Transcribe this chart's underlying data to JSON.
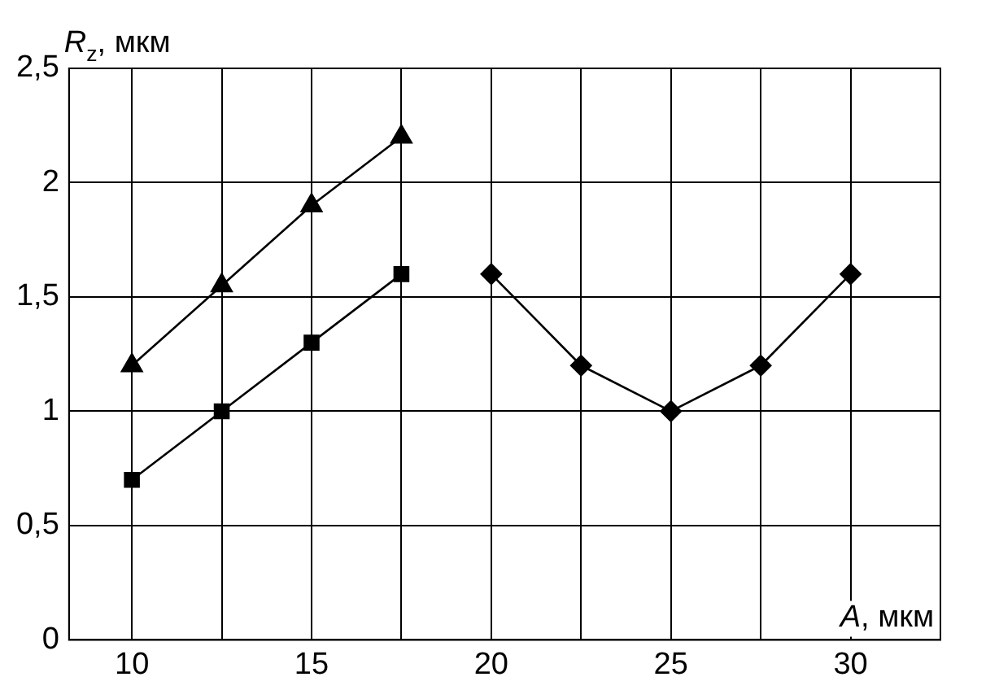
{
  "chart_data": {
    "type": "line",
    "xlabel": "A, мкм",
    "ylabel": "R$_{z}$, мкм",
    "xlim": [
      8.25,
      32.5
    ],
    "xticks": [
      10,
      {
        "value": 12.5,
        "label": null
      },
      15,
      {
        "value": 17.5,
        "label": null
      },
      20,
      {
        "value": 22.5,
        "label": null
      },
      25,
      {
        "value": 27.5,
        "label": null
      },
      30
    ],
    "ylim": [
      0,
      2.5
    ],
    "yticks": [
      0,
      {
        "value": 0.5,
        "label": "0,5"
      },
      1,
      {
        "value": 1.5,
        "label": "1,5"
      },
      2,
      {
        "value": 2.5,
        "label": "2,5"
      }
    ],
    "grid": true,
    "legend": false,
    "series": [
      {
        "color": "#000000",
        "marker": "triangle",
        "x": [
          10,
          12.5,
          15,
          17.5
        ],
        "values": [
          1.2,
          1.55,
          1.9,
          2.2
        ]
      },
      {
        "color": "#000000",
        "marker": "square",
        "x": [
          10,
          12.5,
          15,
          17.5
        ],
        "values": [
          0.7,
          1.0,
          1.3,
          1.6
        ]
      },
      {
        "color": "#000000",
        "marker": "diamond",
        "x": [
          20,
          22.5,
          25,
          27.5,
          30
        ],
        "values": [
          1.6,
          1.2,
          1.0,
          1.2,
          1.6
        ]
      }
    ]
  }
}
